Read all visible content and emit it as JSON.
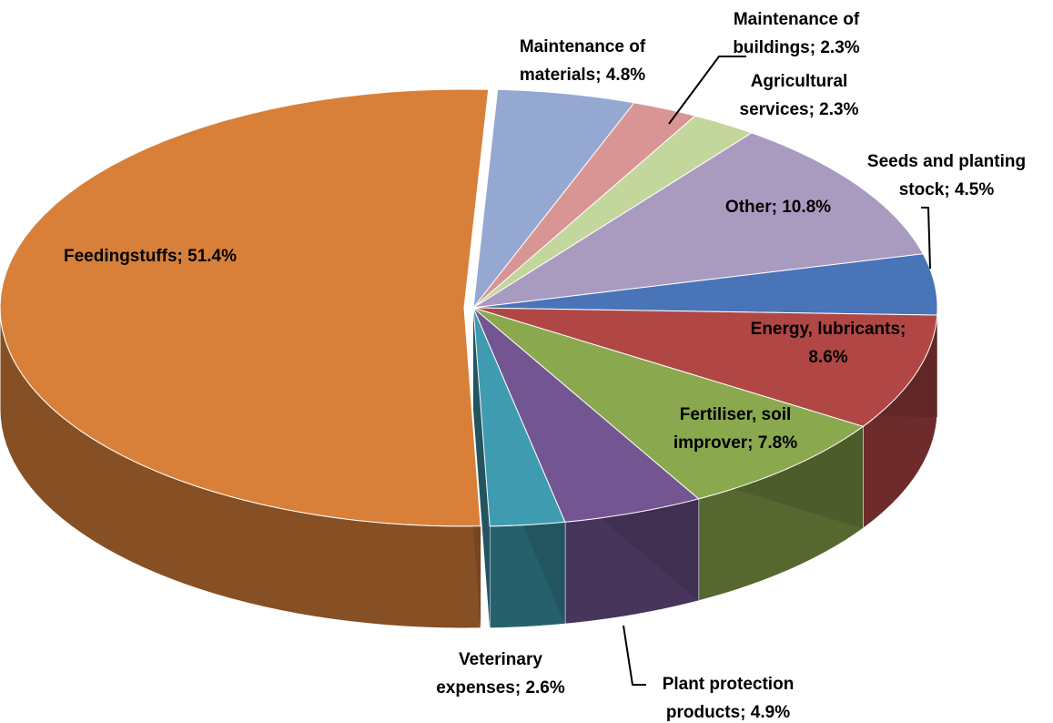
{
  "chart_data": {
    "type": "pie",
    "values": [
      4.8,
      2.3,
      2.3,
      10.8,
      4.5,
      8.6,
      7.8,
      4.9,
      2.6,
      51.4
    ],
    "value_labels": [
      [
        "Maintenance of",
        "materials; 4.8%"
      ],
      [
        "Maintenance of",
        "buildings; 2.3%"
      ],
      [
        "Agricultural",
        "services; 2.3%"
      ],
      [
        "Other; 10.8%"
      ],
      [
        "Seeds and planting",
        "stock; 4.5%"
      ],
      [
        "Energy, lubricants;",
        "8.6%"
      ],
      [
        "Fertiliser, soil",
        "improver; 7.8%"
      ],
      [
        "Plant protection",
        "products; 4.9%"
      ],
      [
        "Veterinary",
        "expenses; 2.6%"
      ],
      [
        "Feedingstuffs; 51.4%"
      ]
    ],
    "colors": [
      "#95a8d2",
      "#d99594",
      "#c3d69b",
      "#a99bc0",
      "#4a74b8",
      "#b04745",
      "#8aa84e",
      "#735592",
      "#3f9bb0",
      "#d8803a"
    ]
  }
}
